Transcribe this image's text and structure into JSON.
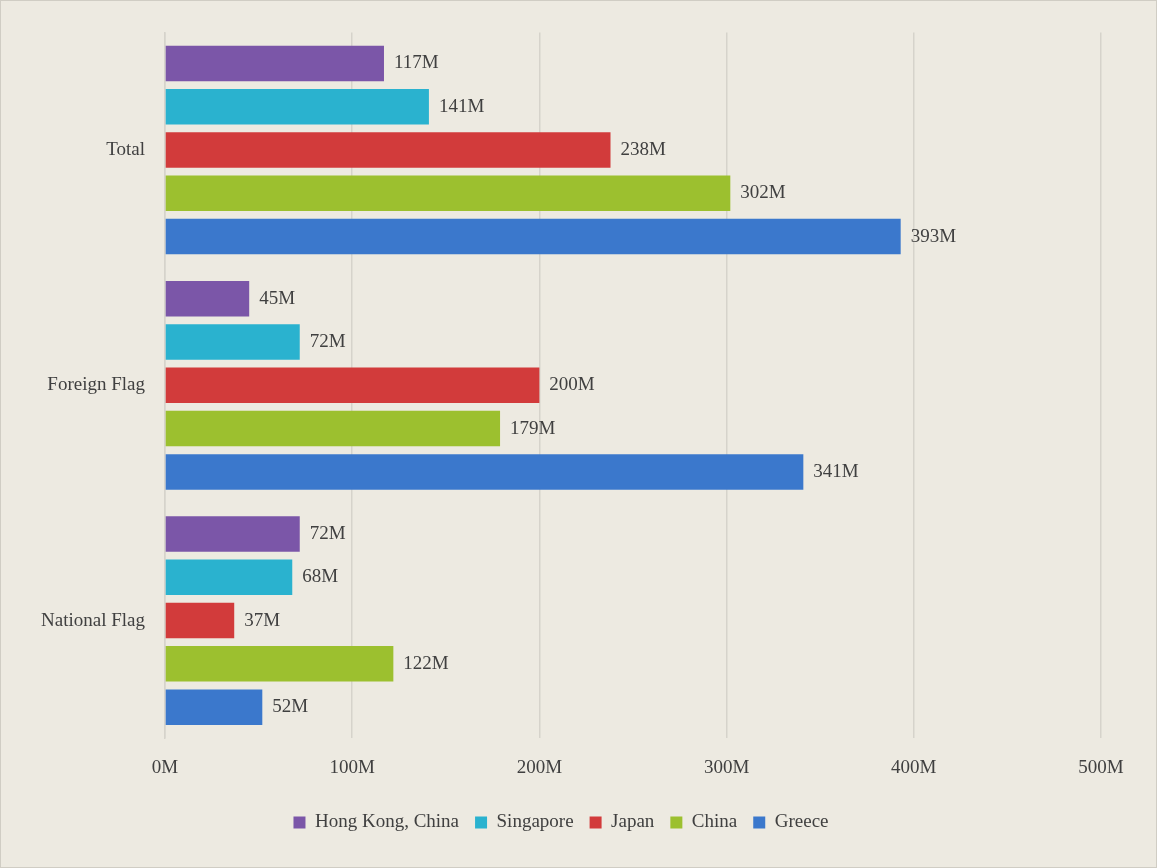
{
  "chart_data": {
    "type": "bar",
    "orientation": "horizontal",
    "categories": [
      "Total",
      "Foreign Flag",
      "National Flag"
    ],
    "series": [
      {
        "name": "Hong Kong, China",
        "color": "#7b56a8",
        "values": [
          117,
          45,
          72
        ],
        "value_labels": [
          "117M",
          "45M",
          "72M"
        ]
      },
      {
        "name": "Singapore",
        "color": "#2ab2cf",
        "values": [
          141,
          72,
          68
        ],
        "value_labels": [
          "141M",
          "72M",
          "68M"
        ]
      },
      {
        "name": "Japan",
        "color": "#d23b3b",
        "values": [
          238,
          200,
          37
        ],
        "value_labels": [
          "238M",
          "200M",
          "37M"
        ]
      },
      {
        "name": "China",
        "color": "#9cc02f",
        "values": [
          302,
          179,
          122
        ],
        "value_labels": [
          "302M",
          "179M",
          "122M"
        ]
      },
      {
        "name": "Greece",
        "color": "#3b78cc",
        "values": [
          393,
          341,
          52
        ],
        "value_labels": [
          "393M",
          "341M",
          "52M"
        ]
      }
    ],
    "xlim": [
      0,
      500
    ],
    "xticks": [
      {
        "value": 0,
        "label": "0M"
      },
      {
        "value": 100,
        "label": "100M"
      },
      {
        "value": 200,
        "label": "200M"
      },
      {
        "value": 300,
        "label": "300M"
      },
      {
        "value": 400,
        "label": "400M"
      },
      {
        "value": 500,
        "label": "500M"
      }
    ],
    "grid": "x",
    "legend": "bottom"
  }
}
